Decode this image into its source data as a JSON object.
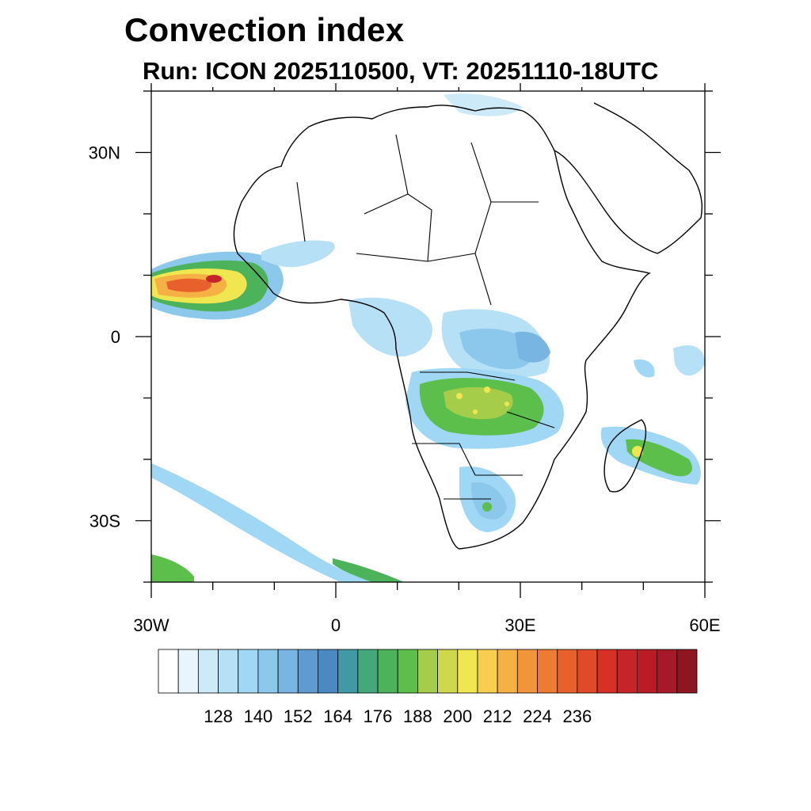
{
  "title": "Convection index",
  "subtitle": "Run: ICON 2025110500,  VT: 20251110-18UTC",
  "map": {
    "lon_range": [
      -30,
      60
    ],
    "lat_range": [
      -40,
      40
    ],
    "lat_labels": [
      "30N",
      "0",
      "30S"
    ],
    "lon_labels": [
      "30W",
      "0",
      "30E",
      "60E"
    ]
  },
  "colorbar": {
    "tick_labels": [
      "128",
      "140",
      "152",
      "164",
      "176",
      "188",
      "200",
      "212",
      "224",
      "236"
    ],
    "colors": [
      "#ffffff",
      "#e8f5fc",
      "#cdeaf8",
      "#b5e0f6",
      "#9fd7f4",
      "#8cc7ec",
      "#78b5e3",
      "#5f9bd0",
      "#4a89c2",
      "#3f9aa5",
      "#44a87a",
      "#4cb35a",
      "#5cbf4c",
      "#a6cd4a",
      "#cfd84a",
      "#f0e650",
      "#f7ce50",
      "#f6b144",
      "#f2953a",
      "#ee7b33",
      "#e8612d",
      "#e04a29",
      "#d73027",
      "#c62428",
      "#b81d26",
      "#a6192a",
      "#8e1622"
    ]
  }
}
